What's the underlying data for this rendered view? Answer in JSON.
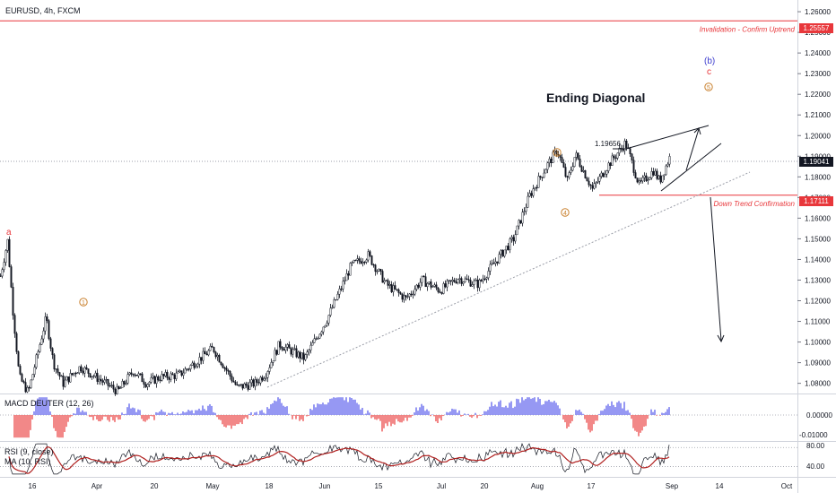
{
  "header": {
    "symbol": "EURUSD, 4h, FXCM"
  },
  "colors": {
    "candle": "#131722",
    "accent_red": "#e8373b",
    "wave_orange": "#c9812f",
    "wave_blue": "#3f3fcf",
    "macd_pos": "#7b7ff0",
    "macd_neg": "#ee6b6b",
    "rsi_line": "#131722",
    "rsi_ma": "#b0201f",
    "axis_line": "#787b86",
    "dotted": "#9b9ea8"
  },
  "chart_data": {
    "type": "candlestick",
    "title": "",
    "y_axis": {
      "ticks": [
        "1.26000",
        "1.25000",
        "1.24000",
        "1.23000",
        "1.22000",
        "1.21000",
        "1.20000",
        "1.19000",
        "1.18000",
        "1.17000",
        "1.16000",
        "1.15000",
        "1.14000",
        "1.13000",
        "1.12000",
        "1.11000",
        "1.10000",
        "1.09000",
        "1.08000"
      ],
      "range": [
        1.0755,
        1.2635
      ]
    },
    "x_axis": {
      "ticks": [
        "16",
        "Apr",
        "20",
        "May",
        "18",
        "Jun",
        "15",
        "Jul",
        "20",
        "Aug",
        "17",
        "Sep",
        "14",
        "Oct"
      ]
    },
    "price_path": [
      {
        "t": 0,
        "v": 1.132
      },
      {
        "t": 8,
        "v": 1.149
      },
      {
        "t": 14,
        "v": 1.115
      },
      {
        "t": 21,
        "v": 1.083
      },
      {
        "t": 31,
        "v": 1.0755
      },
      {
        "t": 44,
        "v": 1.099
      },
      {
        "t": 51,
        "v": 1.112
      },
      {
        "t": 59,
        "v": 1.09
      },
      {
        "t": 70,
        "v": 1.08
      },
      {
        "t": 89,
        "v": 1.088
      },
      {
        "t": 110,
        "v": 1.082
      },
      {
        "t": 131,
        "v": 1.076
      },
      {
        "t": 148,
        "v": 1.086
      },
      {
        "t": 163,
        "v": 1.08
      },
      {
        "t": 178,
        "v": 1.083
      },
      {
        "t": 199,
        "v": 1.084
      },
      {
        "t": 237,
        "v": 1.097
      },
      {
        "t": 264,
        "v": 1.078
      },
      {
        "t": 284,
        "v": 1.08
      },
      {
        "t": 296,
        "v": 1.085
      },
      {
        "t": 311,
        "v": 1.099
      },
      {
        "t": 339,
        "v": 1.092
      },
      {
        "t": 364,
        "v": 1.111
      },
      {
        "t": 391,
        "v": 1.137
      },
      {
        "t": 410,
        "v": 1.142
      },
      {
        "t": 430,
        "v": 1.128
      },
      {
        "t": 452,
        "v": 1.121
      },
      {
        "t": 470,
        "v": 1.13
      },
      {
        "t": 490,
        "v": 1.125
      },
      {
        "t": 510,
        "v": 1.131
      },
      {
        "t": 533,
        "v": 1.128
      },
      {
        "t": 550,
        "v": 1.138
      },
      {
        "t": 572,
        "v": 1.15
      },
      {
        "t": 590,
        "v": 1.171
      },
      {
        "t": 610,
        "v": 1.186
      },
      {
        "t": 621,
        "v": 1.193
      },
      {
        "t": 632,
        "v": 1.178
      },
      {
        "t": 641,
        "v": 1.191
      },
      {
        "t": 660,
        "v": 1.174
      },
      {
        "t": 678,
        "v": 1.186
      },
      {
        "t": 697,
        "v": 1.1966
      },
      {
        "t": 712,
        "v": 1.176
      },
      {
        "t": 728,
        "v": 1.183
      },
      {
        "t": 735,
        "v": 1.178
      },
      {
        "t": 747,
        "v": 1.1904
      }
    ],
    "last_price": "1.19041",
    "price_tags": [
      "1.25557",
      "1.17111",
      "1.19041"
    ],
    "levels": [
      {
        "price": 1.25557,
        "label": "Invalidation - Confirm Uptrend"
      },
      {
        "price": 1.17111,
        "label": "Down Trend Confirmation"
      }
    ],
    "annotations": {
      "ending_diagonal": "Ending Diagonal",
      "peak_value": "1.19656",
      "wave_a": "a",
      "wave_b": "(b)",
      "wave_c": "c",
      "wave_1": "1",
      "wave_3": "3",
      "wave_4": "4",
      "wave_5": "5"
    },
    "macd": {
      "label": "MACD DEUTER (12, 26)",
      "ticks": [
        "0.00000",
        "-0.01000"
      ],
      "range": [
        -0.0125,
        0.0098
      ]
    },
    "rsi": {
      "label_rsi": "RSI (9, close)",
      "label_ma": "MA (10, RSI)",
      "ticks": [
        "80.00",
        "40.00"
      ],
      "range": [
        20,
        90
      ]
    }
  }
}
